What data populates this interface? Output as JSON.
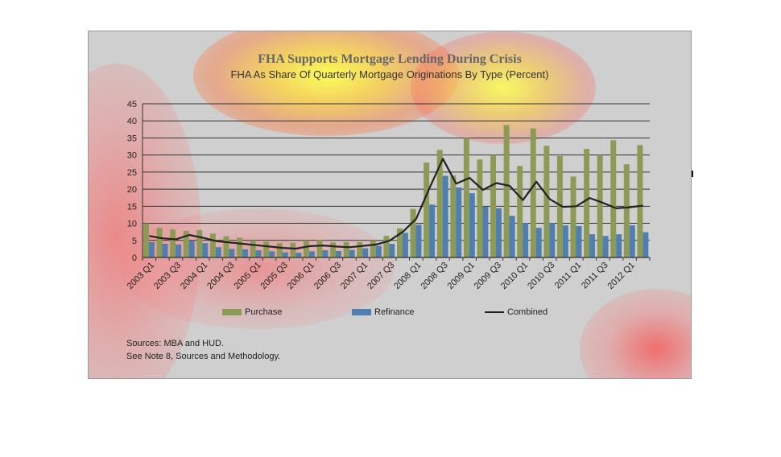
{
  "chart_data": {
    "type": "bar",
    "title": "FHA Supports Mortgage Lending During Crisis",
    "subtitle": "FHA As Share Of Quarterly Mortgage Originations By Type (Percent)",
    "ylim": [
      0,
      45
    ],
    "yticks": [
      0,
      5,
      10,
      15,
      20,
      25,
      30,
      35,
      40,
      45
    ],
    "grid": true,
    "legend_position": "bottom",
    "categories": [
      "2003 Q1",
      "2003 Q2",
      "2003 Q3",
      "2003 Q4",
      "2004 Q1",
      "2004 Q2",
      "2004 Q3",
      "2004 Q4",
      "2005 Q1",
      "2005 Q2",
      "2005 Q3",
      "2005 Q4",
      "2006 Q1",
      "2006 Q2",
      "2006 Q3",
      "2006 Q4",
      "2007 Q1",
      "2007 Q2",
      "2007 Q3",
      "2007 Q4",
      "2008 Q1",
      "2008 Q2",
      "2008 Q3",
      "2008 Q4",
      "2009 Q1",
      "2009 Q2",
      "2009 Q3",
      "2009 Q4",
      "2010 Q1",
      "2010 Q2",
      "2010 Q3",
      "2010 Q4",
      "2011 Q1",
      "2011 Q2",
      "2011 Q3",
      "2011 Q4",
      "2012 Q1",
      "2012 Q2"
    ],
    "tick_labels": [
      "2003 Q1",
      "",
      "2003 Q3",
      "",
      "2004 Q1",
      "",
      "2004 Q3",
      "",
      "2005 Q1",
      "",
      "2005 Q3",
      "",
      "2006 Q1",
      "",
      "2006 Q3",
      "",
      "2007 Q1",
      "",
      "2007 Q3",
      "",
      "2008 Q1",
      "",
      "2008 Q3",
      "",
      "2009 Q1",
      "",
      "2009 Q3",
      "",
      "2010 Q1",
      "",
      "2010 Q3",
      "",
      "2011 Q1",
      "",
      "2011 Q3",
      "",
      "2012 Q1",
      ""
    ],
    "series": [
      {
        "name": "Purchase",
        "kind": "bar",
        "color": "#8d9a55",
        "values": [
          10,
          8.7,
          8.2,
          7.8,
          8,
          7,
          6.2,
          5.8,
          5,
          4.6,
          4.2,
          4.3,
          5,
          5.1,
          4.4,
          4.5,
          4.5,
          5,
          6.3,
          8.5,
          14.2,
          27.8,
          31.5,
          24,
          35,
          28.7,
          30,
          38.8,
          26.8,
          37.8,
          32.7,
          29.7,
          23.7,
          31.8,
          30,
          34.3,
          27.3,
          32.9
        ]
      },
      {
        "name": "Refinance",
        "kind": "bar",
        "color": "#4f7fb0",
        "values": [
          4.5,
          4,
          3.8,
          4.8,
          4.2,
          3,
          2.5,
          2.4,
          2.1,
          1.8,
          1.5,
          1.4,
          1.8,
          2.1,
          1.9,
          2.2,
          2.7,
          3.4,
          4,
          7.2,
          9.6,
          15.5,
          23.9,
          20.5,
          18.8,
          14.9,
          14.4,
          12.2,
          10.1,
          8.7,
          10.1,
          9.4,
          9.2,
          6.8,
          6.3,
          6.8,
          9.4,
          7.4
        ]
      },
      {
        "name": "Combined",
        "kind": "line",
        "color": "#222222",
        "values": [
          6.3,
          5.6,
          5.3,
          6.6,
          5.8,
          4.8,
          4.4,
          4,
          3.6,
          3.2,
          2.8,
          2.6,
          3.3,
          3.5,
          3.2,
          3,
          3.4,
          3.8,
          4.9,
          7.5,
          11.3,
          20.3,
          28.9,
          21.6,
          23.3,
          19.8,
          21.8,
          21,
          16.8,
          22.2,
          17.1,
          14.8,
          15,
          17.4,
          16,
          14.4,
          14.7,
          15.2
        ]
      }
    ]
  },
  "legend": {
    "purchase": "Purchase",
    "refinance": "Refinance",
    "combined": "Combined"
  },
  "sources": {
    "line1": "Sources:  MBA and HUD.",
    "line2": "See Note 8, Sources and Methodology."
  },
  "colors": {
    "purchase": "#8d9a55",
    "refinance": "#4f7fb0",
    "combined": "#222222",
    "background": "#cfcfcf"
  }
}
